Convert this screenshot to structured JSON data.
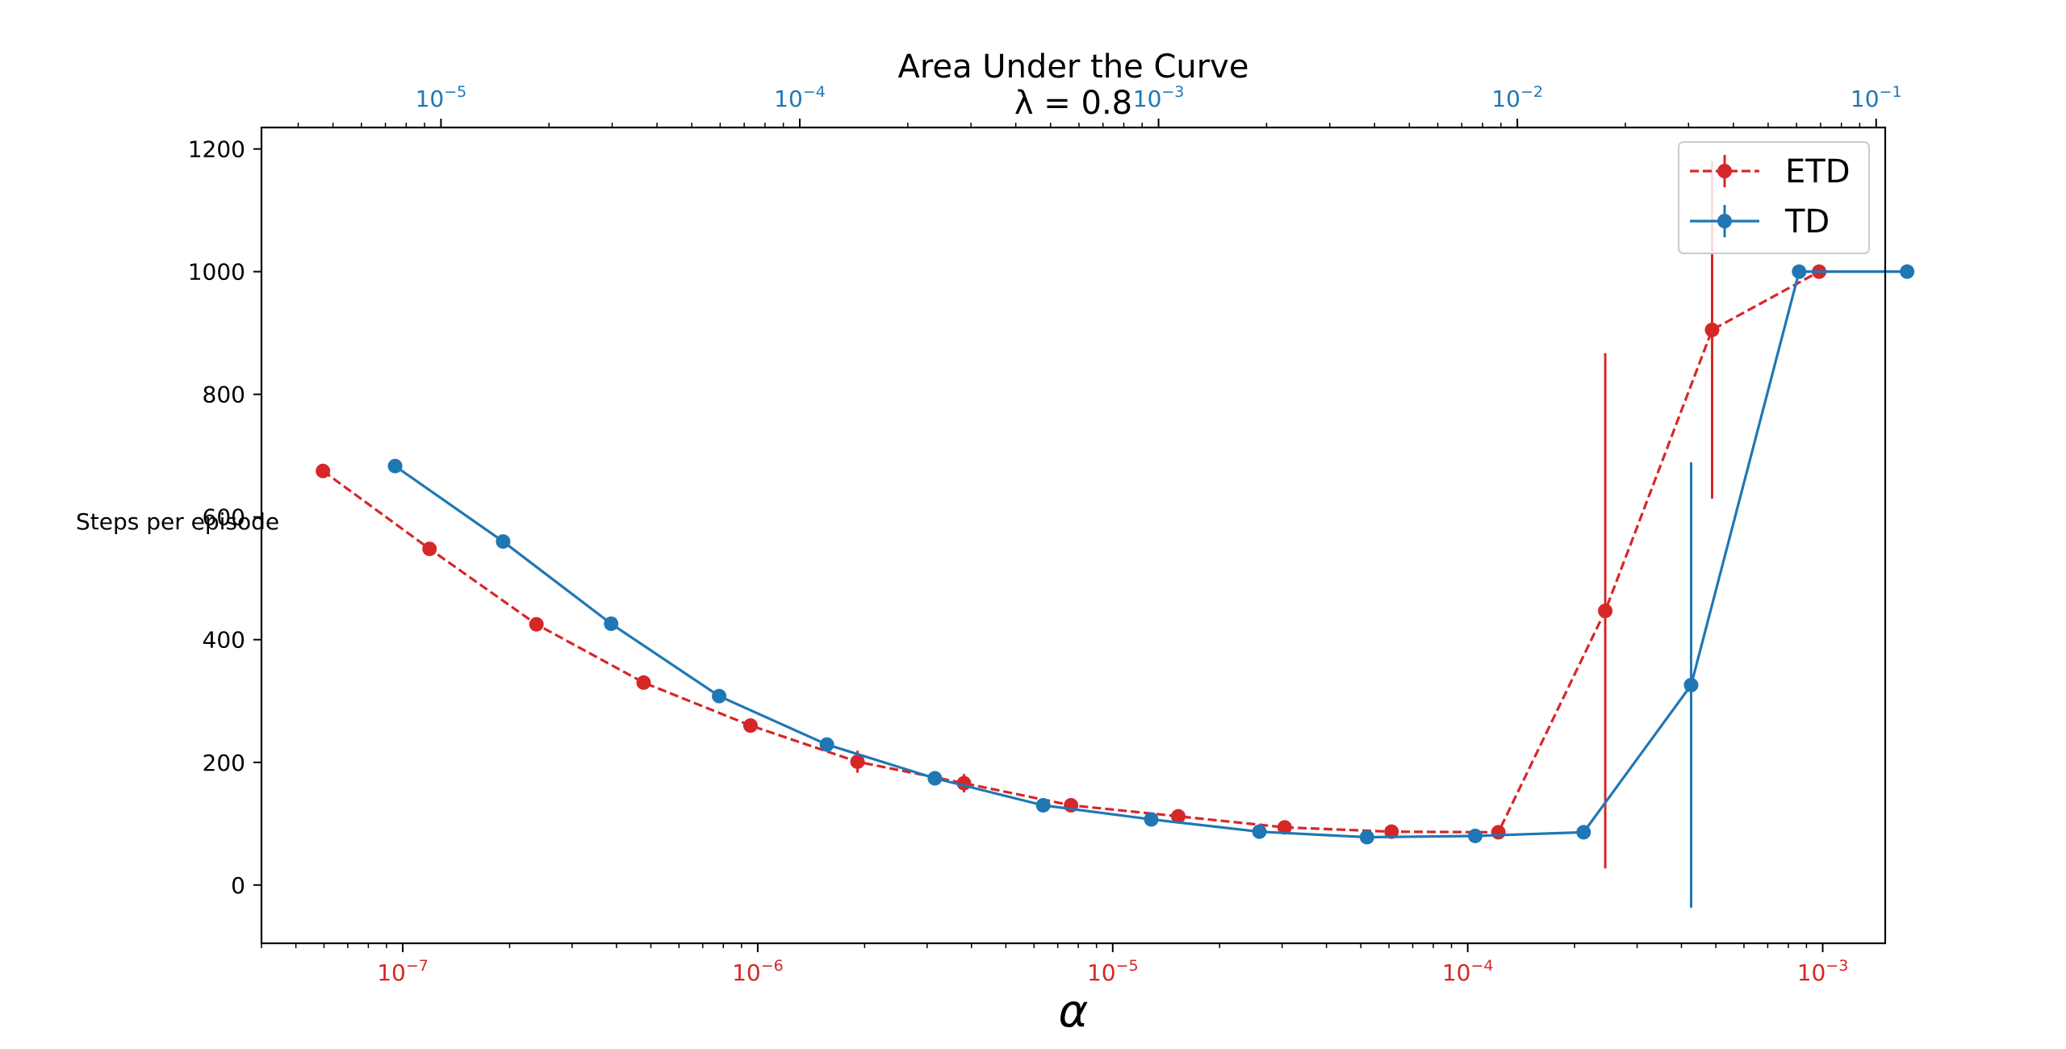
{
  "chart_data": {
    "type": "line",
    "title": "Area Under the Curve",
    "subtitle": "λ = 0.8",
    "xlabel": "α",
    "ylabel": "Steps per episode",
    "x_scale": "log",
    "ylim": [
      -95,
      1235
    ],
    "y_ticks": [
      0,
      200,
      400,
      600,
      800,
      1000,
      1200
    ],
    "grid": false,
    "legend_position": "top-right",
    "bottom_axis": {
      "color": "#d62728",
      "xlim": [
        4e-08,
        0.0015
      ],
      "ticks": [
        {
          "value": 1e-07,
          "base": "10",
          "exp": "−7"
        },
        {
          "value": 1e-06,
          "base": "10",
          "exp": "−6"
        },
        {
          "value": 1e-05,
          "base": "10",
          "exp": "−5"
        },
        {
          "value": 0.0001,
          "base": "10",
          "exp": "−4"
        },
        {
          "value": 0.001,
          "base": "10",
          "exp": "−3"
        }
      ]
    },
    "top_axis": {
      "color": "#1f77b4",
      "xlim": [
        3.16e-06,
        0.106
      ],
      "ticks": [
        {
          "value": 1e-05,
          "base": "10",
          "exp": "−5"
        },
        {
          "value": 0.0001,
          "base": "10",
          "exp": "−4"
        },
        {
          "value": 0.001,
          "base": "10",
          "exp": "−3"
        },
        {
          "value": 0.01,
          "base": "10",
          "exp": "−2"
        },
        {
          "value": 0.1,
          "base": "10",
          "exp": "−1"
        }
      ]
    },
    "series": [
      {
        "name": "ETD",
        "color": "#d62728",
        "line_style": "dashed",
        "axis": "bottom",
        "x": [
          5.96e-08,
          1.19e-07,
          2.38e-07,
          4.77e-07,
          9.54e-07,
          1.91e-06,
          3.81e-06,
          7.63e-06,
          1.53e-05,
          3.05e-05,
          6.1e-05,
          0.000122,
          0.000244,
          0.000488,
          0.000977
        ],
        "y": [
          675,
          548,
          425,
          330,
          260,
          201,
          166,
          130,
          112,
          94,
          87,
          86,
          447,
          905,
          1000
        ],
        "err": [
          5,
          5,
          5,
          8,
          8,
          18,
          15,
          10,
          6,
          5,
          5,
          5,
          420,
          275,
          0
        ]
      },
      {
        "name": "TD",
        "color": "#1f77b4",
        "line_style": "solid",
        "axis": "top",
        "x": [
          7.45e-06,
          1.49e-05,
          2.98e-05,
          5.96e-05,
          0.000119,
          0.000238,
          0.000477,
          0.000954,
          0.00191,
          0.00381,
          0.00763,
          0.0153,
          0.0305,
          0.061,
          0.122
        ],
        "y": [
          683,
          560,
          426,
          308,
          229,
          174,
          130,
          107,
          87,
          78,
          80,
          86,
          326,
          1000,
          1000
        ],
        "err": [
          4,
          4,
          4,
          4,
          4,
          4,
          4,
          4,
          4,
          4,
          4,
          4,
          363,
          0,
          0
        ]
      }
    ]
  }
}
